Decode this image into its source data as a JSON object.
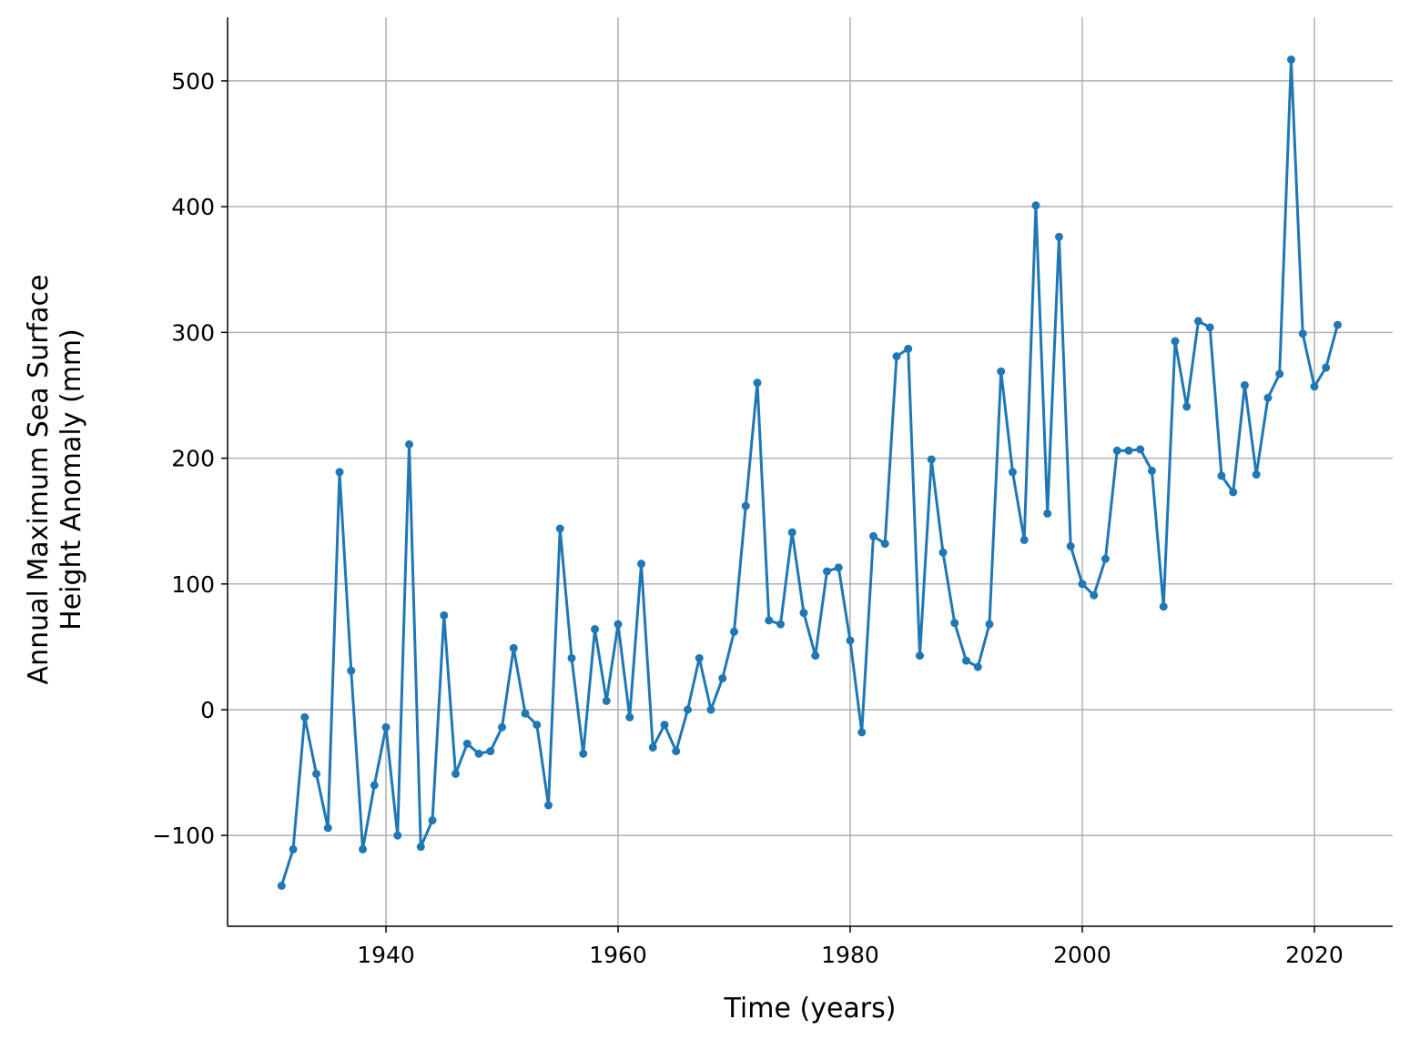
{
  "chart_data": {
    "type": "line",
    "xlabel": "Time (years)",
    "ylabel": [
      "Annual Maximum Sea Surface",
      "Height Anomaly (mm)"
    ],
    "x": [
      1931,
      1932,
      1933,
      1934,
      1935,
      1936,
      1937,
      1938,
      1939,
      1940,
      1941,
      1942,
      1943,
      1944,
      1945,
      1946,
      1947,
      1948,
      1949,
      1950,
      1951,
      1952,
      1953,
      1954,
      1955,
      1956,
      1957,
      1958,
      1959,
      1960,
      1961,
      1962,
      1963,
      1964,
      1965,
      1966,
      1967,
      1968,
      1969,
      1970,
      1971,
      1972,
      1973,
      1974,
      1975,
      1976,
      1977,
      1978,
      1979,
      1980,
      1981,
      1982,
      1983,
      1984,
      1985,
      1986,
      1987,
      1988,
      1989,
      1990,
      1991,
      1992,
      1993,
      1994,
      1995,
      1996,
      1997,
      1998,
      1999,
      2000,
      2001,
      2002,
      2003,
      2004,
      2005,
      2006,
      2007,
      2008,
      2009,
      2010,
      2011,
      2012,
      2013,
      2014,
      2015,
      2016,
      2017,
      2018,
      2019,
      2020,
      2021,
      2022
    ],
    "series": [
      {
        "color": "#1f77b4",
        "values": [
          -140,
          -111,
          -6,
          -51,
          -94,
          189,
          31,
          -111,
          -60,
          -14,
          -100,
          211,
          -109,
          -88,
          75,
          -51,
          -27,
          -35,
          -33,
          -14,
          49,
          -3,
          -12,
          -76,
          144,
          41,
          -35,
          64,
          7,
          68,
          -6,
          116,
          -30,
          -12,
          -33,
          0,
          41,
          0,
          25,
          62,
          162,
          260,
          71,
          68,
          141,
          77,
          43,
          110,
          113,
          55,
          -18,
          138,
          132,
          281,
          287,
          43,
          199,
          125,
          69,
          39,
          34,
          68,
          269,
          189,
          135,
          401,
          156,
          376,
          130,
          100,
          91,
          120,
          206,
          206,
          207,
          190,
          82,
          293,
          241,
          309,
          304,
          186,
          173,
          258,
          187,
          248,
          267,
          517,
          299,
          257,
          272,
          306
        ]
      }
    ],
    "xlim": [
      1926.35,
      2026.75
    ],
    "ylim": [
      -172.2,
      550.6
    ],
    "xticks": [
      1940,
      1960,
      1980,
      2000,
      2020
    ],
    "yticks": [
      {
        "value": -100,
        "label": "−100"
      },
      0,
      100,
      200,
      300,
      400,
      500
    ],
    "grid": true
  }
}
